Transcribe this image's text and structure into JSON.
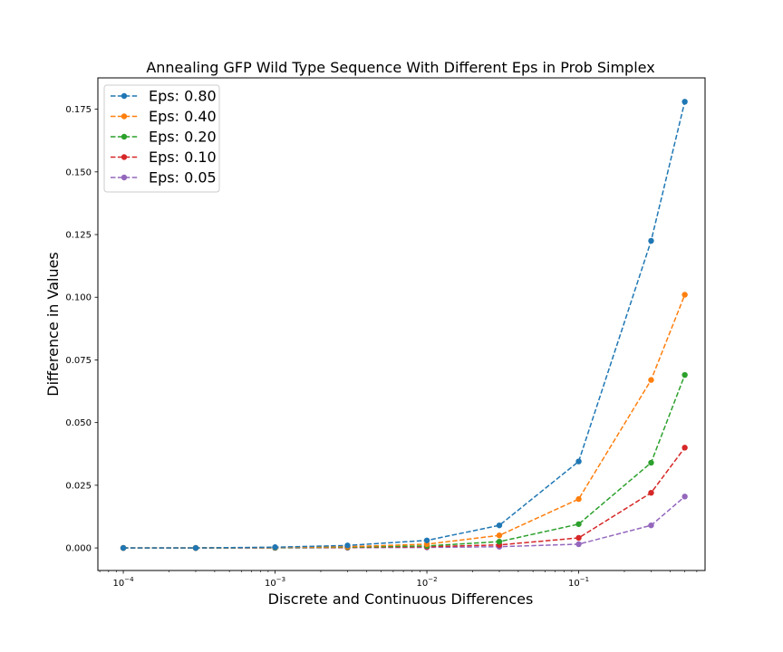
{
  "chart_data": {
    "type": "line",
    "title": "Annealing GFP Wild Type Sequence With Different Eps in Prob Simplex",
    "xlabel": "Discrete and Continuous Differences",
    "ylabel": "Difference in Values",
    "xscale": "log",
    "xlim": [
      6.8e-05,
      0.68
    ],
    "ylim": [
      -0.009,
      0.1875
    ],
    "grid": false,
    "legend_position": "top-left",
    "x": [
      0.0001,
      0.0003,
      0.001,
      0.003,
      0.01,
      0.03,
      0.1,
      0.3,
      0.5
    ],
    "x_ticks": [
      {
        "value": 0.0001,
        "base": "10",
        "exp": "−4"
      },
      {
        "value": 0.001,
        "base": "10",
        "exp": "−3"
      },
      {
        "value": 0.01,
        "base": "10",
        "exp": "−2"
      },
      {
        "value": 0.1,
        "base": "10",
        "exp": "−1"
      }
    ],
    "y_ticks": [
      {
        "value": 0.0,
        "label": "0.000"
      },
      {
        "value": 0.025,
        "label": "0.025"
      },
      {
        "value": 0.05,
        "label": "0.050"
      },
      {
        "value": 0.075,
        "label": "0.075"
      },
      {
        "value": 0.1,
        "label": "0.100"
      },
      {
        "value": 0.125,
        "label": "0.125"
      },
      {
        "value": 0.15,
        "label": "0.150"
      },
      {
        "value": 0.175,
        "label": "0.175"
      }
    ],
    "series": [
      {
        "name": "Eps: 0.80",
        "color": "#1f77b4",
        "values": [
          0.0,
          0.0,
          0.0003,
          0.001,
          0.003,
          0.009,
          0.0345,
          0.1225,
          0.178
        ]
      },
      {
        "name": "Eps: 0.40",
        "color": "#ff7f0e",
        "values": [
          0.0,
          0.0,
          0.0002,
          0.0005,
          0.0015,
          0.005,
          0.0195,
          0.067,
          0.101
        ]
      },
      {
        "name": "Eps: 0.20",
        "color": "#2ca02c",
        "values": [
          0.0,
          0.0,
          0.0001,
          0.0003,
          0.0008,
          0.0025,
          0.0095,
          0.034,
          0.069
        ]
      },
      {
        "name": "Eps: 0.10",
        "color": "#d62728",
        "values": [
          0.0,
          0.0,
          0.0001,
          0.0002,
          0.0005,
          0.0012,
          0.004,
          0.022,
          0.04
        ]
      },
      {
        "name": "Eps: 0.05",
        "color": "#9467bd",
        "values": [
          0.0,
          0.0,
          0.0,
          0.0001,
          0.0002,
          0.0005,
          0.0015,
          0.009,
          0.0205
        ]
      }
    ]
  }
}
